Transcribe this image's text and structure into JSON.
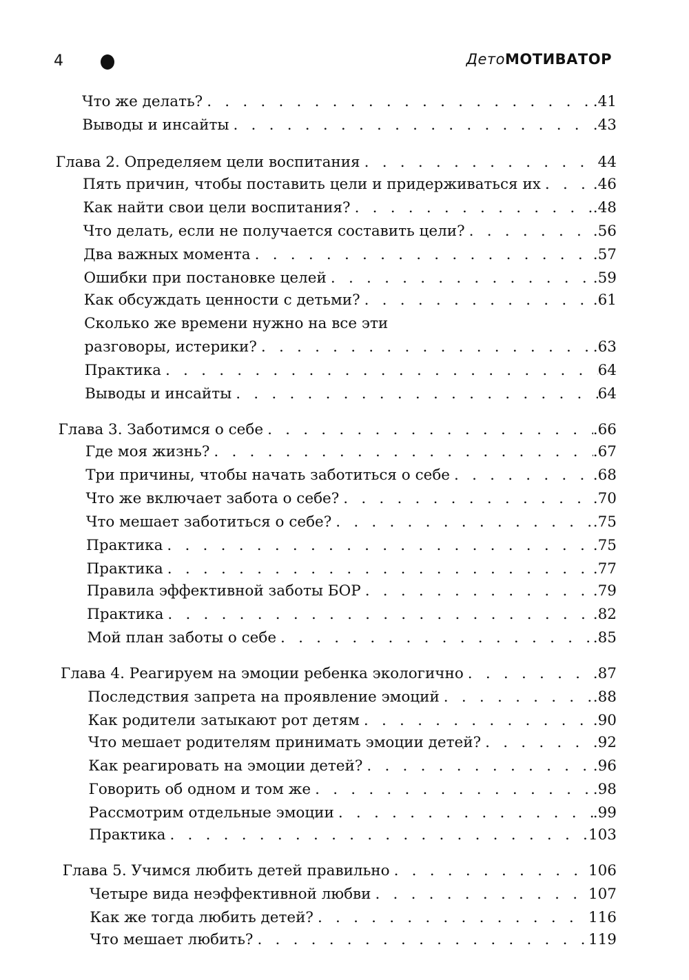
{
  "header": {
    "page_number": "4",
    "book_title_italic": "Дето",
    "book_title_bold": "МОТИВАТОР"
  },
  "toc": [
    {
      "title": "Что же делать?",
      "page": ".41",
      "level": 2
    },
    {
      "title": "Выводы и инсайты",
      "page": ".43",
      "level": 2
    },
    {
      "title": "Глава 2. Определяем цели воспитания",
      "page": "44",
      "level": 1
    },
    {
      "title": "Пять причин, чтобы поставить цели и придерживаться их",
      "page": ".46",
      "level": 2
    },
    {
      "title": "Как найти свои цели воспитания?",
      "page": ".48",
      "level": 2
    },
    {
      "title": "Что делать, если не получается составить цели?",
      "page": ".56",
      "level": 2
    },
    {
      "title": "Два важных момента",
      "page": ".57",
      "level": 2
    },
    {
      "title": "Ошибки при постановке целей",
      "page": ".59",
      "level": 2
    },
    {
      "title": "Как обсуждать ценности с детьми?",
      "page": ".61",
      "level": 2
    },
    {
      "title": "Сколько же времени нужно на все эти",
      "page": "",
      "level": 2
    },
    {
      "title": "разговоры, истерики?",
      "page": ".63",
      "level": 2
    },
    {
      "title": "Практика",
      "page": "64",
      "level": 2
    },
    {
      "title": "Выводы и инсайты",
      "page": "64",
      "level": 2
    },
    {
      "title": "Глава 3. Заботимся о себе",
      "page": ".66",
      "level": 1
    },
    {
      "title": "Где моя жизнь?",
      "page": ".67",
      "level": 2
    },
    {
      "title": "Три причины, чтобы начать заботиться о себе",
      "page": ".68",
      "level": 2
    },
    {
      "title": "Что же включает забота о себе?",
      "page": ".70",
      "level": 2
    },
    {
      "title": "Что мешает заботиться о себе?",
      "page": ".75",
      "level": 2
    },
    {
      "title": "Практика",
      "page": ".75",
      "level": 2
    },
    {
      "title": "Практика",
      "page": ".77",
      "level": 2
    },
    {
      "title": "Правила эффективной заботы БОР",
      "page": ".79",
      "level": 2
    },
    {
      "title": "Практика",
      "page": ".82",
      "level": 2
    },
    {
      "title": "Мой план заботы о себе",
      "page": ".85",
      "level": 2
    },
    {
      "title": "Глава 4. Реагируем на эмоции ребенка экологично",
      "page": ".87",
      "level": 1
    },
    {
      "title": "Последствия запрета на проявление эмоций",
      "page": ".88",
      "level": 2
    },
    {
      "title": "Как родители затыкают рот детям",
      "page": ".90",
      "level": 2
    },
    {
      "title": "Что мешает родителям принимать эмоции детей?",
      "page": ".92",
      "level": 2
    },
    {
      "title": "Как реагировать на эмоции детей?",
      "page": ".96",
      "level": 2
    },
    {
      "title": "Говорить об одном и том же",
      "page": ".98",
      "level": 2
    },
    {
      "title": "Рассмотрим отдельные эмоции",
      "page": ".99",
      "level": 2
    },
    {
      "title": "Практика",
      "page": "103",
      "level": 2
    },
    {
      "title": "Глава 5. Учимся любить детей правильно",
      "page": "106",
      "level": 1
    },
    {
      "title": "Четыре вида неэффективной любви",
      "page": "107",
      "level": 2
    },
    {
      "title": "Как же тогда любить детей?",
      "page": "116",
      "level": 2
    },
    {
      "title": "Что мешает любить?",
      "page": "119",
      "level": 2
    }
  ]
}
